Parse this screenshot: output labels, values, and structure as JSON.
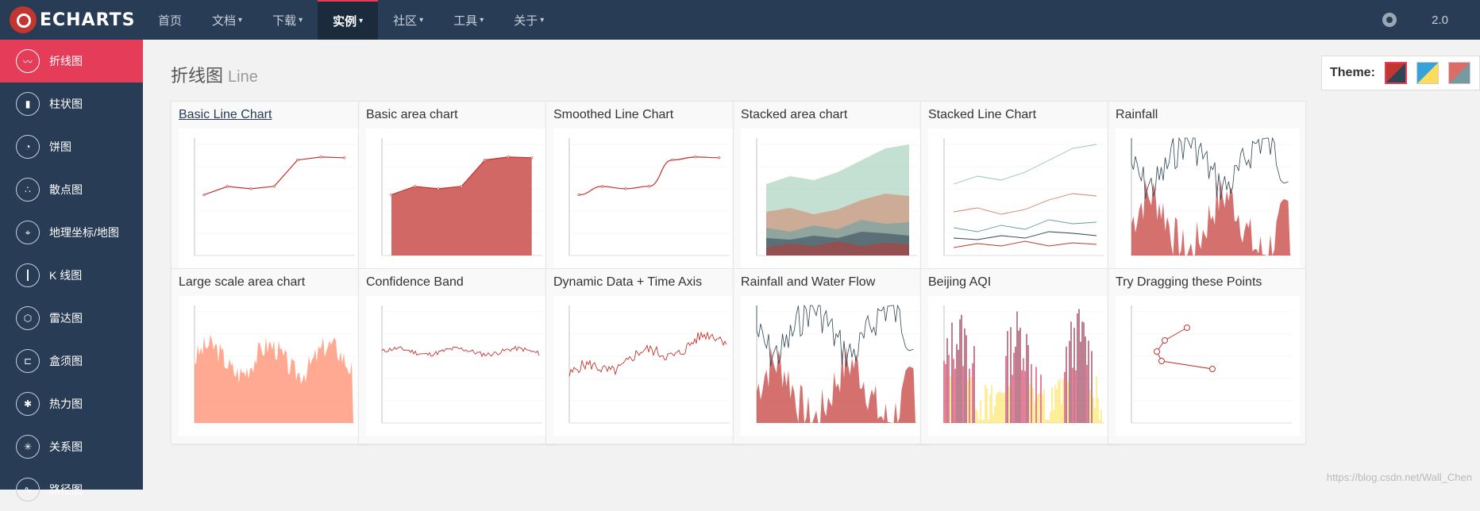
{
  "brand": {
    "text": "ECHARTS"
  },
  "nav": {
    "items": [
      {
        "label": "首页",
        "caret": false,
        "active": false
      },
      {
        "label": "文档",
        "caret": true,
        "active": false
      },
      {
        "label": "下载",
        "caret": true,
        "active": false
      },
      {
        "label": "实例",
        "caret": true,
        "active": true
      },
      {
        "label": "社区",
        "caret": true,
        "active": false
      },
      {
        "label": "工具",
        "caret": true,
        "active": false
      },
      {
        "label": "关于",
        "caret": true,
        "active": false
      }
    ],
    "version": "2.0"
  },
  "sidebar": {
    "items": [
      {
        "label": "折线图",
        "icon": "line-chart-icon",
        "glyph": "〰",
        "active": true
      },
      {
        "label": "柱状图",
        "icon": "bar-chart-icon",
        "glyph": "▮",
        "active": false
      },
      {
        "label": "饼图",
        "icon": "pie-chart-icon",
        "glyph": "◔",
        "active": false
      },
      {
        "label": "散点图",
        "icon": "scatter-icon",
        "glyph": "∴",
        "active": false
      },
      {
        "label": "地理坐标/地图",
        "icon": "map-icon",
        "glyph": "⌖",
        "active": false
      },
      {
        "label": "K 线图",
        "icon": "candlestick-icon",
        "glyph": "┃",
        "active": false
      },
      {
        "label": "雷达图",
        "icon": "radar-icon",
        "glyph": "⬡",
        "active": false
      },
      {
        "label": "盒须图",
        "icon": "boxplot-icon",
        "glyph": "⊏",
        "active": false
      },
      {
        "label": "热力图",
        "icon": "heatmap-icon",
        "glyph": "✱",
        "active": false
      },
      {
        "label": "关系图",
        "icon": "graph-icon",
        "glyph": "✳",
        "active": false
      },
      {
        "label": "路径图",
        "icon": "lines-icon",
        "glyph": "∿",
        "active": false
      }
    ]
  },
  "page": {
    "title": "折线图",
    "subtitle": "Line"
  },
  "theme": {
    "label": "Theme:"
  },
  "cards": [
    {
      "title": "Basic Line Chart",
      "kind": "line",
      "values": [
        820,
        932,
        901,
        934,
        1290,
        1330,
        1320
      ],
      "link": true
    },
    {
      "title": "Basic area chart",
      "kind": "area",
      "values": [
        820,
        932,
        901,
        934,
        1290,
        1330,
        1320
      ],
      "link": false
    },
    {
      "title": "Smoothed Line Chart",
      "kind": "smooth",
      "values": [
        820,
        932,
        901,
        934,
        1290,
        1330,
        1320
      ],
      "link": false
    },
    {
      "title": "Stacked area chart",
      "kind": "stackarea",
      "values": [],
      "link": false
    },
    {
      "title": "Stacked Line Chart",
      "kind": "stackline",
      "values": [],
      "link": false
    },
    {
      "title": "Rainfall",
      "kind": "rainfall",
      "values": [],
      "link": false
    },
    {
      "title": "Large scale area chart",
      "kind": "large",
      "values": [],
      "link": false
    },
    {
      "title": "Confidence Band",
      "kind": "band",
      "values": [],
      "link": false
    },
    {
      "title": "Dynamic Data + Time Axis",
      "kind": "dynamic",
      "values": [],
      "link": false
    },
    {
      "title": "Rainfall and Water Flow",
      "kind": "flow",
      "values": [],
      "link": false
    },
    {
      "title": "Beijing AQI",
      "kind": "aqi",
      "values": [],
      "link": false
    },
    {
      "title": "Try Dragging these Points",
      "kind": "drag",
      "values": [],
      "link": false
    }
  ],
  "watermark": "https://blog.csdn.net/Wall_Chen",
  "colors": {
    "nav_bg": "#293c55",
    "accent": "#e43c59",
    "series_red": "#c23531",
    "series_green": "#a7d4b5"
  }
}
